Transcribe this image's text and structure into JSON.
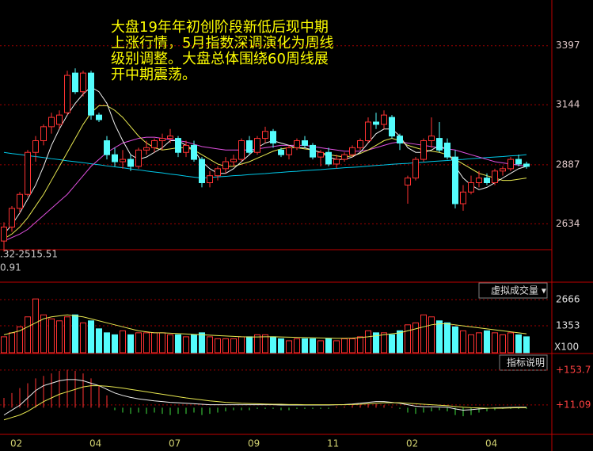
{
  "annotation": [
    "大盘19年年初创阶段新低后现中期",
    "上涨行情，5月指数深调演化为周线",
    "级别调整。大盘总体围绕60周线展",
    "开中期震荡。"
  ],
  "chart_data": [
    {
      "type": "candlestick",
      "range_text": ".32-2515.51",
      "sub_text": "0.91",
      "up_color": "#ff3232",
      "down_color": "#54fcfc",
      "grid": true,
      "ylim": [
        2523,
        3593
      ],
      "yticks": [
        2634,
        2887,
        3144,
        3397
      ],
      "categories": [
        null,
        "02",
        null,
        null,
        null,
        null,
        null,
        null,
        null,
        null,
        null,
        "04",
        null,
        null,
        null,
        null,
        null,
        null,
        null,
        null,
        null,
        "07",
        null,
        null,
        null,
        null,
        null,
        null,
        null,
        null,
        null,
        "09",
        null,
        null,
        null,
        null,
        null,
        null,
        null,
        null,
        null,
        "11",
        null,
        null,
        null,
        null,
        null,
        null,
        null,
        null,
        null,
        "02",
        null,
        null,
        null,
        null,
        null,
        null,
        null,
        null,
        null,
        "04",
        null,
        null,
        null,
        null,
        null
      ],
      "open": [
        2560,
        2620,
        2700,
        2760,
        2940,
        2990,
        3050,
        3060,
        3110,
        3280,
        3200,
        3280,
        3100,
        2990,
        2930,
        2900,
        2910,
        2880,
        2950,
        2960,
        2990,
        3000,
        3000,
        2940,
        2970,
        2910,
        2810,
        2840,
        2870,
        2900,
        2910,
        2990,
        2940,
        3000,
        3030,
        2950,
        2930,
        2960,
        2990,
        2970,
        2920,
        2940,
        2890,
        2910,
        2930,
        2960,
        2990,
        3070,
        3060,
        3090,
        3010,
        2800,
        2830,
        2910,
        2990,
        3000,
        2980,
        2920,
        2720,
        2770,
        2810,
        2830,
        2810,
        2860,
        2870,
        2910,
        2890
      ],
      "high": [
        2640,
        2710,
        2770,
        2950,
        3010,
        3060,
        3110,
        3120,
        3290,
        3300,
        3290,
        3290,
        3110,
        3010,
        2960,
        2950,
        2930,
        2960,
        2990,
        3000,
        3020,
        3040,
        3010,
        2990,
        2990,
        2920,
        2860,
        2880,
        2920,
        2930,
        3000,
        3010,
        3010,
        3050,
        3040,
        2960,
        2970,
        3000,
        3010,
        2980,
        2950,
        2960,
        2930,
        2940,
        2970,
        3000,
        3090,
        3110,
        3120,
        3100,
        3020,
        2840,
        2920,
        3000,
        3090,
        3070,
        3000,
        2950,
        2800,
        2840,
        2860,
        2850,
        2870,
        2880,
        2920,
        2930,
        2900
      ],
      "low": [
        2515,
        2600,
        2680,
        2750,
        2900,
        2970,
        3020,
        3040,
        3100,
        3190,
        3180,
        3080,
        3070,
        2910,
        2880,
        2870,
        2860,
        2870,
        2930,
        2940,
        2950,
        2980,
        2920,
        2920,
        2900,
        2790,
        2790,
        2820,
        2850,
        2880,
        2900,
        2930,
        2930,
        2980,
        2960,
        2920,
        2910,
        2950,
        2960,
        2910,
        2880,
        2880,
        2870,
        2900,
        2920,
        2950,
        2980,
        3040,
        3040,
        3000,
        2950,
        2720,
        2820,
        2900,
        2960,
        2940,
        2910,
        2700,
        2690,
        2760,
        2790,
        2800,
        2800,
        2840,
        2860,
        2880,
        2870
      ],
      "close": [
        2620,
        2700,
        2760,
        2940,
        2990,
        3050,
        3090,
        3100,
        3270,
        3200,
        3280,
        3100,
        3080,
        2930,
        2900,
        2910,
        2880,
        2950,
        2960,
        2990,
        3000,
        3010,
        2940,
        2970,
        2910,
        2810,
        2840,
        2870,
        2900,
        2910,
        2990,
        2940,
        3000,
        3030,
        2980,
        2930,
        2960,
        2990,
        2970,
        2920,
        2940,
        2890,
        2910,
        2930,
        2960,
        2990,
        3070,
        3060,
        3100,
        3010,
        2980,
        2830,
        2910,
        2990,
        3010,
        2950,
        2920,
        2720,
        2770,
        2810,
        2830,
        2810,
        2860,
        2870,
        2910,
        2890,
        2880
      ],
      "series": [
        {
          "color": "#00c8e8",
          "values": [
            2940,
            2935,
            2931,
            2926,
            2922,
            2918,
            2913,
            2909,
            2904,
            2900,
            2896,
            2891,
            2887,
            2882,
            2878,
            2874,
            2869,
            2865,
            2860,
            2856,
            2852,
            2847,
            2843,
            2838,
            2834,
            2830,
            2832,
            2835,
            2837,
            2840,
            2842,
            2845,
            2847,
            2849,
            2852,
            2854,
            2857,
            2859,
            2862,
            2864,
            2866,
            2869,
            2871,
            2874,
            2876,
            2878,
            2881,
            2884,
            2886,
            2889,
            2891,
            2893,
            2896,
            2898,
            2901,
            2903,
            2905,
            2908,
            2910,
            2913,
            2915,
            2918,
            2920,
            2922,
            2925,
            2927,
            2930
          ]
        },
        {
          "color": "#e050e0",
          "values": [
            2560,
            2575,
            2590,
            2610,
            2640,
            2670,
            2700,
            2730,
            2760,
            2800,
            2840,
            2880,
            2910,
            2940,
            2960,
            2980,
            2990,
            3000,
            3005,
            3005,
            3000,
            2995,
            2990,
            2985,
            2975,
            2965,
            2960,
            2955,
            2950,
            2950,
            2950,
            2950,
            2955,
            2960,
            2965,
            2970,
            2970,
            2970,
            2970,
            2965,
            2960,
            2955,
            2950,
            2945,
            2945,
            2945,
            2950,
            2960,
            2970,
            2980,
            2985,
            2980,
            2975,
            2970,
            2965,
            2960,
            2955,
            2950,
            2940,
            2930,
            2920,
            2910,
            2900,
            2895,
            2890,
            2885,
            2880
          ]
        },
        {
          "color": "#e8e850",
          "values": [
            2570,
            2590,
            2620,
            2660,
            2710,
            2760,
            2820,
            2880,
            2940,
            3000,
            3060,
            3110,
            3140,
            3140,
            3120,
            3090,
            3050,
            3010,
            2980,
            2960,
            2950,
            2955,
            2960,
            2960,
            2950,
            2930,
            2910,
            2890,
            2880,
            2880,
            2890,
            2900,
            2915,
            2930,
            2945,
            2955,
            2960,
            2960,
            2955,
            2950,
            2940,
            2930,
            2925,
            2920,
            2925,
            2935,
            2950,
            2970,
            2990,
            3000,
            2990,
            2970,
            2960,
            2950,
            2945,
            2940,
            2930,
            2910,
            2890,
            2870,
            2850,
            2840,
            2830,
            2820,
            2820,
            2825,
            2830
          ]
        },
        {
          "color": "#f0f0f0",
          "values": [
            2590,
            2630,
            2680,
            2740,
            2800,
            2880,
            2970,
            3040,
            3100,
            3150,
            3190,
            3220,
            3200,
            3150,
            3060,
            2990,
            2930,
            2910,
            2920,
            2940,
            2960,
            2990,
            2990,
            2970,
            2950,
            2900,
            2870,
            2850,
            2850,
            2870,
            2900,
            2930,
            2960,
            2980,
            2990,
            2980,
            2970,
            2960,
            2960,
            2950,
            2940,
            2920,
            2910,
            2910,
            2920,
            2940,
            2980,
            3020,
            3040,
            3040,
            3010,
            2960,
            2940,
            2940,
            2950,
            2970,
            2950,
            2880,
            2830,
            2800,
            2780,
            2790,
            2810,
            2830,
            2850,
            2870,
            2880
          ]
        }
      ]
    },
    {
      "type": "volume",
      "indicator": "虚拟成交量 ▾",
      "unit": "X100",
      "grid": true,
      "ylim": [
        0,
        3382
      ],
      "yticks": [
        1353,
        2666
      ],
      "values": [
        800,
        1000,
        1300,
        1800,
        2700,
        1900,
        1700,
        1600,
        1800,
        1900,
        1500,
        1600,
        1200,
        1000,
        900,
        1100,
        900,
        1000,
        1000,
        1000,
        1000,
        900,
        900,
        800,
        900,
        1000,
        800,
        700,
        700,
        700,
        800,
        800,
        900,
        900,
        800,
        700,
        600,
        700,
        700,
        700,
        600,
        700,
        600,
        700,
        700,
        800,
        1100,
        1000,
        1000,
        900,
        1100,
        1400,
        1500,
        1900,
        1800,
        1600,
        1500,
        1300,
        1100,
        900,
        1000,
        1100,
        1000,
        900,
        1000,
        900,
        800
      ],
      "series": [
        {
          "color": "#e8e850",
          "values": [
            900,
            1000,
            1100,
            1300,
            1500,
            1700,
            1800,
            1850,
            1900,
            1850,
            1800,
            1700,
            1600,
            1500,
            1400,
            1300,
            1200,
            1100,
            1050,
            1000,
            1000,
            980,
            960,
            940,
            920,
            900,
            880,
            860,
            840,
            820,
            800,
            790,
            790,
            800,
            800,
            790,
            780,
            770,
            760,
            750,
            740,
            730,
            720,
            720,
            730,
            760,
            800,
            850,
            900,
            950,
            1000,
            1100,
            1200,
            1300,
            1400,
            1450,
            1450,
            1400,
            1350,
            1300,
            1250,
            1200,
            1150,
            1100,
            1050,
            1000,
            950
          ]
        }
      ]
    },
    {
      "type": "macd",
      "indicator": "指标说明",
      "grid": true,
      "up_color": "#ff3232",
      "down_color": "#40e040",
      "ylim": [
        -109,
        215
      ],
      "yticks": [
        {
          "value": 11.09,
          "label": "+11.09"
        },
        {
          "value": 153.7,
          "label": "+153.7"
        }
      ],
      "values": [
        40,
        60,
        80,
        100,
        120,
        130,
        140,
        150,
        155,
        150,
        140,
        120,
        90,
        50,
        -10,
        -20,
        -25,
        -20,
        -25,
        -20,
        -25,
        -30,
        -25,
        -25,
        -20,
        -30,
        -25,
        -20,
        -15,
        -10,
        -10,
        -10,
        -5,
        -5,
        -5,
        -10,
        -10,
        -5,
        -5,
        -5,
        -5,
        -5,
        5,
        5,
        10,
        10,
        15,
        15,
        10,
        5,
        -5,
        -20,
        -25,
        -20,
        -15,
        -10,
        -15,
        -30,
        -35,
        -30,
        -20,
        -15,
        -10,
        -5,
        -5,
        -5,
        -5
      ],
      "series": [
        {
          "color": "#f0f0f0",
          "values": [
            -30,
            -10,
            10,
            40,
            70,
            90,
            100,
            110,
            115,
            115,
            110,
            100,
            90,
            75,
            60,
            50,
            42,
            36,
            32,
            28,
            25,
            22,
            20,
            18,
            16,
            14,
            12,
            12,
            12,
            12,
            12,
            12,
            12,
            12,
            12,
            11,
            11,
            11,
            11,
            11,
            11,
            11,
            12,
            13,
            15,
            18,
            22,
            25,
            25,
            22,
            18,
            12,
            6,
            4,
            4,
            3,
            2,
            -5,
            -10,
            -8,
            -5,
            -3,
            -1,
            0,
            1,
            2,
            2
          ]
        },
        {
          "color": "#e8e850",
          "values": [
            -50,
            -40,
            -30,
            -15,
            5,
            25,
            40,
            55,
            65,
            75,
            85,
            90,
            90,
            88,
            84,
            80,
            75,
            70,
            65,
            60,
            55,
            50,
            45,
            40,
            36,
            32,
            28,
            25,
            22,
            20,
            18,
            17,
            16,
            15,
            14,
            14,
            13,
            13,
            12,
            12,
            12,
            12,
            12,
            12,
            13,
            14,
            16,
            18,
            20,
            20,
            20,
            18,
            16,
            14,
            12,
            10,
            8,
            5,
            2,
            0,
            -1,
            -2,
            -2,
            -2,
            -1,
            0,
            0
          ]
        }
      ]
    }
  ]
}
